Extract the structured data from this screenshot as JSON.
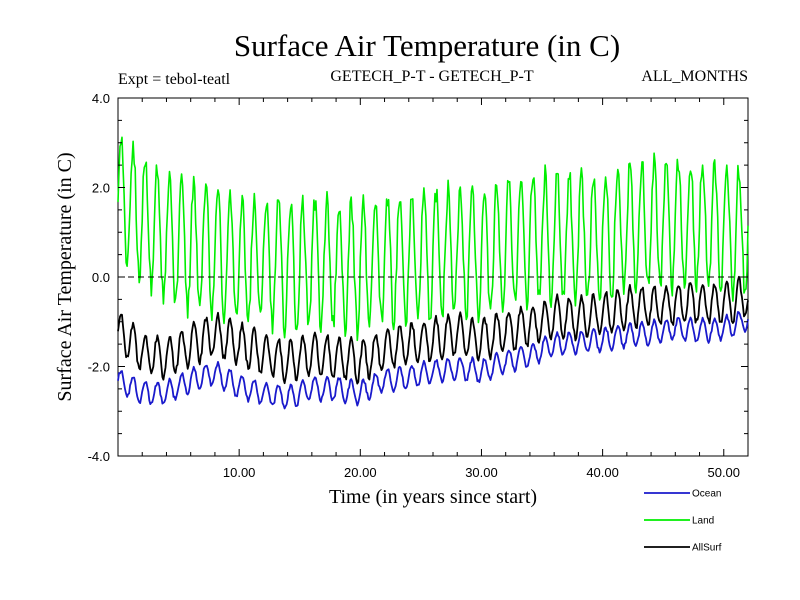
{
  "chart_data": {
    "type": "line",
    "title": "Surface Air Temperature (in C)",
    "subtitle_left": "Expt = tebol-teatl",
    "subtitle_center": "GETECH_P-T - GETECH_P-T",
    "subtitle_right": "ALL_MONTHS",
    "xlabel": "Time (in years since start)",
    "ylabel": "Surface Air Temperature (in C)",
    "xlim": [
      0,
      52
    ],
    "ylim": [
      -4.0,
      4.0
    ],
    "x_ticks": [
      "10.00",
      "20.00",
      "30.00",
      "40.00",
      "50.00"
    ],
    "y_ticks": [
      "4.0",
      "2.0",
      "0.0",
      "-2.0",
      "-4.0"
    ],
    "zero_line": true,
    "legend_position": "bottom-right",
    "series": [
      {
        "name": "Ocean",
        "color": "#1a1acc",
        "note": "monthly values, approx. annual means with ~0.25 C seasonal cycle",
        "x": [
          0,
          2,
          4,
          6,
          8,
          10,
          12,
          14,
          16,
          18,
          20,
          22,
          24,
          26,
          28,
          30,
          32,
          34,
          36,
          38,
          40,
          42,
          44,
          46,
          48,
          50,
          52
        ],
        "values": [
          -2.3,
          -2.6,
          -2.6,
          -2.3,
          -2.15,
          -2.45,
          -2.6,
          -2.7,
          -2.5,
          -2.5,
          -2.6,
          -2.3,
          -2.25,
          -2.1,
          -2.05,
          -2.1,
          -1.9,
          -1.75,
          -1.5,
          -1.45,
          -1.4,
          -1.3,
          -1.25,
          -1.15,
          -1.2,
          -1.15,
          -0.95
        ]
      },
      {
        "name": "Land",
        "color": "#00ee00",
        "note": "monthly values, approx. annual means with ~1.4 C seasonal cycle",
        "x": [
          0,
          2,
          4,
          6,
          8,
          10,
          12,
          14,
          16,
          18,
          20,
          22,
          24,
          26,
          28,
          30,
          32,
          34,
          36,
          38,
          40,
          42,
          44,
          46,
          48,
          50,
          52
        ],
        "values": [
          1.8,
          1.4,
          0.8,
          0.7,
          0.6,
          0.4,
          0.4,
          0.2,
          0.3,
          0.3,
          0.2,
          0.4,
          0.4,
          0.5,
          0.6,
          0.5,
          0.7,
          0.9,
          0.9,
          0.9,
          0.9,
          1.1,
          1.2,
          1.2,
          1.2,
          1.1,
          1.0
        ]
      },
      {
        "name": "AllSurf",
        "color": "#000000",
        "note": "monthly values, approx. annual means with ~0.45 C seasonal cycle",
        "x": [
          0,
          2,
          4,
          6,
          8,
          10,
          12,
          14,
          16,
          18,
          20,
          22,
          24,
          26,
          28,
          30,
          32,
          34,
          36,
          38,
          40,
          42,
          44,
          46,
          48,
          50,
          52
        ],
        "values": [
          -1.2,
          -1.7,
          -1.8,
          -1.5,
          -1.3,
          -1.5,
          -1.7,
          -1.9,
          -1.7,
          -1.8,
          -1.9,
          -1.6,
          -1.5,
          -1.4,
          -1.3,
          -1.4,
          -1.2,
          -1.1,
          -0.9,
          -0.9,
          -0.8,
          -0.7,
          -0.65,
          -0.6,
          -0.55,
          -0.6,
          -0.45
        ]
      }
    ]
  }
}
